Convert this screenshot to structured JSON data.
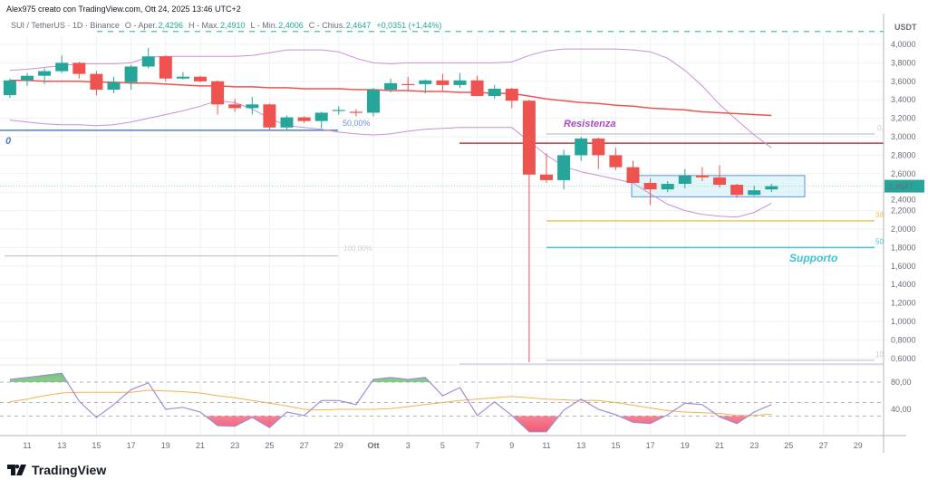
{
  "header": {
    "credit": "Alex975 creato con TradingView.com, Ott 24, 2025 13:46 UTC+2"
  },
  "legend": {
    "symbol": "SUI / TetherUS · 1D · Binance",
    "open_label": "O - Aper.",
    "open": "2,4296",
    "high_label": "H - Max.",
    "high": "2,4910",
    "low_label": "L - Min.",
    "low": "2,4006",
    "close_label": "C - Chius.",
    "close": "2,4647",
    "change": "+0,0351 (+1,44%)"
  },
  "price_axis": {
    "unit": "USDT",
    "ticks": [
      "4,0000",
      "3,8000",
      "3,6000",
      "3,4000",
      "3,2000",
      "3,0000",
      "2,8000",
      "2,6000",
      "2,4000",
      "2,2000",
      "2,0000",
      "1,8000",
      "1,6000",
      "1,4000",
      "1,2000",
      "1,0000",
      "0,8000",
      "0,6000"
    ],
    "tick_values": [
      4.0,
      3.8,
      3.6,
      3.4,
      3.2,
      3.0,
      2.8,
      2.6,
      2.4,
      2.2,
      2.0,
      1.8,
      1.6,
      1.4,
      1.2,
      1.0,
      0.8,
      0.6
    ],
    "last_price_label": "2,4647",
    "last_price": 2.4647
  },
  "rsi_axis": {
    "ticks": [
      "80,00",
      "40,00"
    ],
    "tick_values": [
      80,
      40
    ],
    "levels": [
      80,
      50,
      30
    ]
  },
  "time_axis": {
    "labels": [
      "11",
      "13",
      "15",
      "17",
      "19",
      "21",
      "23",
      "25",
      "27",
      "29",
      "Ott",
      "3",
      "5",
      "7",
      "9",
      "11",
      "13",
      "15",
      "17",
      "19",
      "21",
      "23",
      "25",
      "27",
      "29"
    ]
  },
  "chart_data": {
    "type": "candlestick",
    "candles_ohlc": [
      [
        3.45,
        3.63,
        3.42,
        3.61
      ],
      [
        3.61,
        3.69,
        3.55,
        3.66
      ],
      [
        3.66,
        3.74,
        3.57,
        3.71
      ],
      [
        3.71,
        3.88,
        3.69,
        3.8
      ],
      [
        3.8,
        3.81,
        3.63,
        3.68
      ],
      [
        3.68,
        3.71,
        3.45,
        3.51
      ],
      [
        3.51,
        3.65,
        3.47,
        3.59
      ],
      [
        3.59,
        3.78,
        3.51,
        3.76
      ],
      [
        3.76,
        3.96,
        3.74,
        3.87
      ],
      [
        3.87,
        3.88,
        3.6,
        3.63
      ],
      [
        3.63,
        3.7,
        3.62,
        3.65
      ],
      [
        3.65,
        3.66,
        3.59,
        3.6
      ],
      [
        3.6,
        3.61,
        3.24,
        3.35
      ],
      [
        3.35,
        3.41,
        3.27,
        3.31
      ],
      [
        3.31,
        3.43,
        3.24,
        3.35
      ],
      [
        3.35,
        3.36,
        3.08,
        3.1
      ],
      [
        3.1,
        3.23,
        3.08,
        3.21
      ],
      [
        3.21,
        3.22,
        3.15,
        3.17
      ],
      [
        3.17,
        3.27,
        3.09,
        3.26
      ],
      [
        3.28,
        3.33,
        3.24,
        3.29
      ],
      [
        3.27,
        3.3,
        3.22,
        3.26
      ],
      [
        3.26,
        3.53,
        3.22,
        3.51
      ],
      [
        3.51,
        3.63,
        3.48,
        3.58
      ],
      [
        3.57,
        3.65,
        3.5,
        3.56
      ],
      [
        3.57,
        3.62,
        3.47,
        3.61
      ],
      [
        3.61,
        3.68,
        3.5,
        3.56
      ],
      [
        3.56,
        3.69,
        3.53,
        3.61
      ],
      [
        3.61,
        3.66,
        3.44,
        3.44
      ],
      [
        3.44,
        3.56,
        3.41,
        3.52
      ],
      [
        3.52,
        3.53,
        3.31,
        3.39
      ],
      [
        3.39,
        3.4,
        0.56,
        2.59
      ],
      [
        2.59,
        2.82,
        2.5,
        2.53
      ],
      [
        2.53,
        2.86,
        2.43,
        2.8
      ],
      [
        2.8,
        3.0,
        2.74,
        2.98
      ],
      [
        2.98,
        2.99,
        2.65,
        2.8
      ],
      [
        2.8,
        2.88,
        2.64,
        2.67
      ],
      [
        2.67,
        2.74,
        2.5,
        2.5
      ],
      [
        2.5,
        2.55,
        2.26,
        2.43
      ],
      [
        2.43,
        2.52,
        2.4,
        2.49
      ],
      [
        2.49,
        2.65,
        2.44,
        2.58
      ],
      [
        2.58,
        2.67,
        2.52,
        2.56
      ],
      [
        2.56,
        2.69,
        2.45,
        2.48
      ],
      [
        2.48,
        2.49,
        2.34,
        2.37
      ],
      [
        2.37,
        2.47,
        2.36,
        2.42
      ],
      [
        2.4296,
        2.491,
        2.4006,
        2.4647
      ]
    ],
    "bollinger_upper": [
      3.72,
      3.73,
      3.75,
      3.77,
      3.79,
      3.79,
      3.79,
      3.8,
      3.86,
      3.87,
      3.87,
      3.87,
      3.87,
      3.87,
      3.88,
      3.91,
      3.94,
      3.94,
      3.94,
      3.92,
      3.85,
      3.8,
      3.79,
      3.8,
      3.8,
      3.8,
      3.8,
      3.8,
      3.8,
      3.81,
      3.88,
      3.93,
      3.95,
      3.95,
      3.95,
      3.95,
      3.94,
      3.92,
      3.85,
      3.72,
      3.55,
      3.35,
      3.18,
      3.02,
      2.88
    ],
    "bollinger_basis": [
      3.61,
      3.61,
      3.6,
      3.6,
      3.6,
      3.59,
      3.59,
      3.58,
      3.58,
      3.57,
      3.56,
      3.55,
      3.55,
      3.54,
      3.54,
      3.53,
      3.53,
      3.52,
      3.52,
      3.52,
      3.51,
      3.51,
      3.5,
      3.5,
      3.49,
      3.49,
      3.48,
      3.48,
      3.47,
      3.47,
      3.44,
      3.41,
      3.39,
      3.37,
      3.36,
      3.34,
      3.33,
      3.31,
      3.3,
      3.29,
      3.27,
      3.26,
      3.25,
      3.24,
      3.23
    ],
    "bollinger_lower": [
      3.18,
      3.16,
      3.14,
      3.13,
      3.13,
      3.12,
      3.13,
      3.16,
      3.2,
      3.24,
      3.28,
      3.33,
      3.39,
      3.37,
      3.3,
      3.2,
      3.12,
      3.1,
      3.08,
      3.05,
      3.03,
      3.02,
      3.03,
      3.06,
      3.08,
      3.09,
      3.1,
      3.1,
      3.1,
      3.1,
      2.95,
      2.8,
      2.68,
      2.62,
      2.58,
      2.54,
      2.5,
      2.38,
      2.27,
      2.2,
      2.16,
      2.14,
      2.13,
      2.18,
      2.28
    ],
    "rsi": [
      84,
      87,
      90,
      93,
      52,
      28,
      47,
      69,
      79,
      40,
      43,
      36,
      16,
      15,
      28,
      13,
      36,
      31,
      53,
      53,
      47,
      84,
      87,
      84,
      87,
      60,
      72,
      31,
      51,
      31,
      7,
      7,
      39,
      55,
      40,
      32,
      21,
      19,
      32,
      49,
      47,
      29,
      19,
      36,
      47
    ],
    "rsi_signal": [
      51,
      55,
      60,
      64,
      65,
      65,
      65,
      65,
      68,
      67,
      66,
      64,
      60,
      57,
      53,
      49,
      45,
      40,
      39,
      40,
      40,
      40,
      41,
      44,
      47,
      50,
      53,
      55,
      57,
      59,
      57,
      55,
      54,
      53,
      53,
      50,
      46,
      42,
      38,
      36,
      35,
      34,
      31,
      31,
      33
    ],
    "colors": {
      "up": "#26a69a",
      "down": "#ef5350",
      "bb_band": "#c98fd6",
      "bb_basis": "#ef5350",
      "rsi": "#9d8fd6",
      "rsi_signal": "#f5b04f"
    }
  },
  "drawings": {
    "dashed_top_level": 4.14,
    "fib_left": {
      "level_0": 3.07,
      "level_100": 1.71,
      "label_0": "0",
      "label_50": "50,00%",
      "label_100": "100,00%"
    },
    "resistance": {
      "label": "Resistenza",
      "level": 2.93
    },
    "fib_right": {
      "level_0": 3.03,
      "level_382": 2.09,
      "level_50": 1.8,
      "level_100": 0.58,
      "label_0": "0,",
      "label_382": "38",
      "label_50": "50",
      "label_100": "10"
    },
    "support": {
      "label": "Supporto"
    },
    "range_box": {
      "top": 2.58,
      "bottom": 2.35
    },
    "colors": {
      "fib_left": "#4a7ed6",
      "resistance": "#c2393f",
      "resistance_text": "#a64bc2",
      "fib_382": "#f0c75a",
      "fib_50": "#3ec2d6",
      "gray": "#c8c9cc",
      "top_dash": "#3ec2a0",
      "box_stroke": "#5b8fe0",
      "box_fill": "#d5f1f7"
    }
  },
  "branding": {
    "logo_text": "TradingView"
  }
}
